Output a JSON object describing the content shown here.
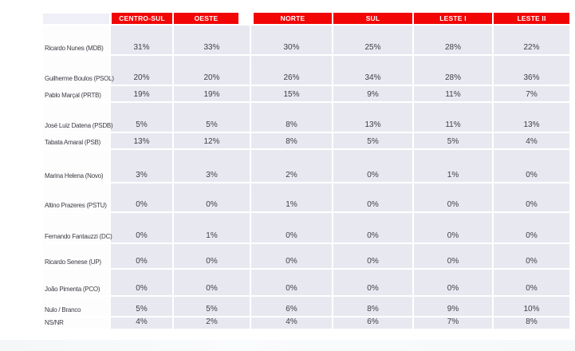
{
  "chart_data": {
    "type": "table",
    "description_visible_on_screen": "",
    "categories": [
      "CENTRO-SUL",
      "OESTE",
      "NORTE",
      "SUL",
      "LESTE I",
      "LESTE II"
    ],
    "value_suffix": "%",
    "series": [
      {
        "name": "Ricardo Nunes (MDB)",
        "values": [
          31,
          33,
          30,
          25,
          28,
          22
        ]
      },
      {
        "name": "Guilherme Boulos (PSOL)",
        "values": [
          20,
          20,
          26,
          34,
          28,
          36
        ]
      },
      {
        "name": "Pablo Marçal (PRTB)",
        "values": [
          19,
          19,
          15,
          9,
          11,
          7
        ]
      },
      {
        "name": "José Luiz Datena (PSDB)",
        "values": [
          5,
          5,
          8,
          13,
          11,
          13
        ]
      },
      {
        "name": "Tabata Amaral (PSB)",
        "values": [
          13,
          12,
          8,
          5,
          5,
          4
        ]
      },
      {
        "name": "Marina Helena (Novo)",
        "values": [
          3,
          3,
          2,
          0,
          1,
          0
        ]
      },
      {
        "name": "Altino Prazeres (PSTU)",
        "values": [
          0,
          0,
          1,
          0,
          0,
          0
        ]
      },
      {
        "name": "Fernando Fantauzzi (DC)",
        "values": [
          0,
          1,
          0,
          0,
          0,
          0
        ]
      },
      {
        "name": "Ricardo Senese (UP)",
        "values": [
          0,
          0,
          0,
          0,
          0,
          0
        ]
      },
      {
        "name": "João Pimenta (PCO)",
        "values": [
          0,
          0,
          0,
          0,
          0,
          0
        ]
      },
      {
        "name": "Nulo / Branco",
        "values": [
          5,
          5,
          6,
          8,
          9,
          10
        ]
      },
      {
        "name": "NS/NR",
        "values": [
          4,
          2,
          4,
          6,
          7,
          8
        ]
      }
    ],
    "legend_position": "none",
    "grid": "white 2px gridlines between cells"
  },
  "colors": {
    "header_red": "#f20505",
    "header_text": "#ffffff",
    "cell_background": "#e8e8f1",
    "label_header_background": "#efeff7",
    "label_cell_background": "#fdfdfe",
    "body_text": "#3c3c43",
    "page_background": "#ffffff"
  }
}
